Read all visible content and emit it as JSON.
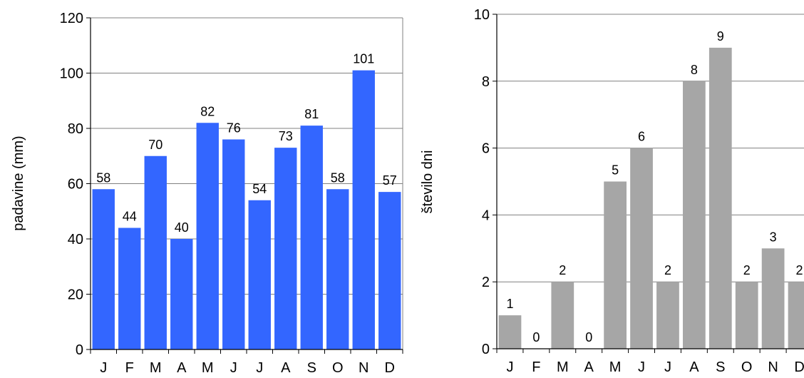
{
  "chart_data": [
    {
      "type": "bar",
      "categories": [
        "J",
        "F",
        "M",
        "A",
        "M",
        "J",
        "J",
        "A",
        "S",
        "O",
        "N",
        "D"
      ],
      "values": [
        58,
        44,
        70,
        40,
        82,
        76,
        54,
        73,
        81,
        58,
        101,
        57
      ],
      "value_labels": [
        "58",
        "44",
        "70",
        "40",
        "82",
        "76",
        "54",
        "73",
        "81",
        "58",
        "101",
        "57"
      ],
      "title": "",
      "xlabel": "",
      "ylabel": "padavine (mm)",
      "ylim": [
        0,
        120
      ],
      "yticks": [
        "0",
        "20",
        "40",
        "60",
        "80",
        "100",
        "120"
      ],
      "grid": true,
      "legend": "none",
      "color": "#3366FF"
    },
    {
      "type": "bar",
      "categories": [
        "J",
        "F",
        "M",
        "A",
        "M",
        "J",
        "J",
        "A",
        "S",
        "O",
        "N",
        "D"
      ],
      "values": [
        1,
        0,
        2,
        0,
        5,
        6,
        2,
        8,
        9,
        2,
        3,
        2
      ],
      "value_labels": [
        "1",
        "0",
        "2",
        "0",
        "5",
        "6",
        "2",
        "8",
        "9",
        "2",
        "3",
        "2"
      ],
      "title": "",
      "xlabel": "",
      "ylabel": "število dni",
      "ylim": [
        0,
        10
      ],
      "yticks": [
        "0",
        "2",
        "4",
        "6",
        "8",
        "10"
      ],
      "grid": true,
      "legend": "none",
      "color": "#A6A6A6"
    }
  ]
}
